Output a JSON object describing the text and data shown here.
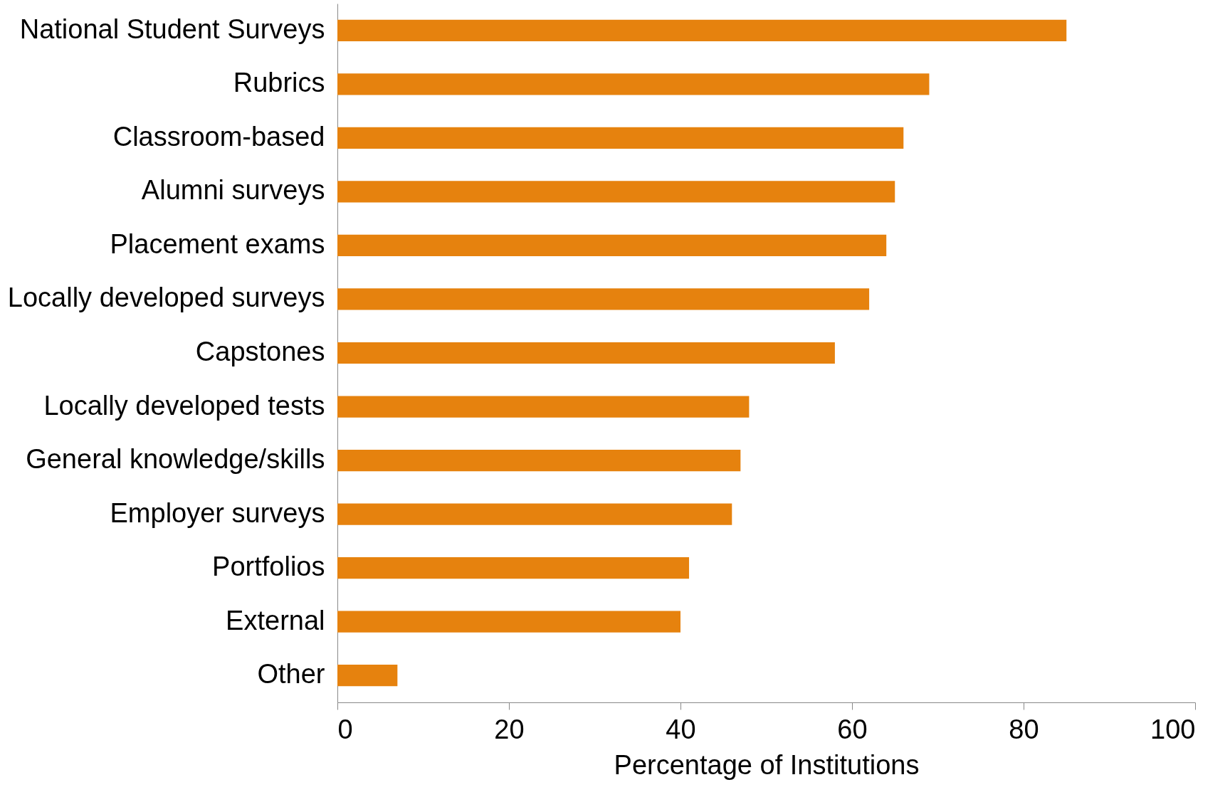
{
  "chart_data": {
    "type": "bar",
    "orientation": "horizontal",
    "xlabel": "Percentage of Institutions",
    "categories": [
      "National Student Surveys",
      "Rubrics",
      "Classroom-based",
      "Alumni surveys",
      "Placement exams",
      "Locally developed surveys",
      "Capstones",
      "Locally developed tests",
      "General knowledge/skills",
      "Employer surveys",
      "Portfolios",
      "External",
      "Other"
    ],
    "values": [
      85,
      69,
      66,
      65,
      64,
      62,
      58,
      48,
      47,
      46,
      41,
      40,
      7
    ],
    "color": "#e6820e",
    "xlim": [
      0,
      100
    ],
    "xticks": [
      0,
      20,
      40,
      60,
      80,
      100
    ],
    "grid": false
  }
}
